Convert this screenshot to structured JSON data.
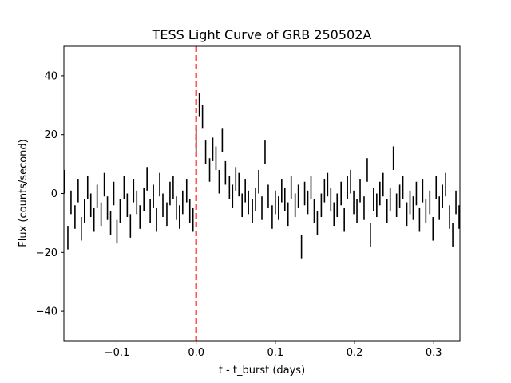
{
  "chart_data": {
    "type": "scatter",
    "title": "TESS Light Curve of GRB 250502A",
    "xlabel": "t - t_burst (days)",
    "ylabel": "Flux (counts/second)",
    "xlim": [
      -0.167,
      0.333
    ],
    "ylim": [
      -50,
      50
    ],
    "xticks": [
      -0.1,
      0.0,
      0.1,
      0.2,
      0.3
    ],
    "xtick_labels": [
      "−0.1",
      "0.0",
      "0.1",
      "0.2",
      "0.3"
    ],
    "yticks": [
      -40,
      -20,
      0,
      20,
      40
    ],
    "ytick_labels": [
      "−40",
      "−20",
      "0",
      "20",
      "40"
    ],
    "grid": false,
    "errorbar_half_height": 4,
    "marker_color": "#000000",
    "burst_line": {
      "x": 0.0,
      "color": "#ff0000",
      "style": "dashed"
    },
    "series": [
      {
        "x": [
          -0.166,
          -0.162,
          -0.158,
          -0.153,
          -0.149,
          -0.145,
          -0.141,
          -0.137,
          -0.133,
          -0.129,
          -0.125,
          -0.12,
          -0.116,
          -0.112,
          -0.108,
          -0.104,
          -0.1,
          -0.096,
          -0.091,
          -0.087,
          -0.083,
          -0.079,
          -0.075,
          -0.071,
          -0.066,
          -0.062,
          -0.058,
          -0.054,
          -0.05,
          -0.046,
          -0.042,
          -0.037,
          -0.033,
          -0.029,
          -0.025,
          -0.021,
          -0.017,
          -0.012,
          -0.008,
          -0.004,
          0.0,
          0.004,
          0.008,
          0.012,
          0.017,
          0.021,
          0.025,
          0.029,
          0.033,
          0.037,
          0.042,
          0.046,
          0.05,
          0.054,
          0.058,
          0.062,
          0.066,
          0.071,
          0.075,
          0.079,
          0.083,
          0.087,
          0.091,
          0.096,
          0.1,
          0.104,
          0.108,
          0.112,
          0.116,
          0.12,
          0.125,
          0.129,
          0.133,
          0.137,
          0.141,
          0.145,
          0.149,
          0.153,
          0.158,
          0.162,
          0.166,
          0.17,
          0.174,
          0.178,
          0.183,
          0.187,
          0.191,
          0.195,
          0.199,
          0.203,
          0.207,
          0.212,
          0.216,
          0.22,
          0.224,
          0.228,
          0.232,
          0.236,
          0.241,
          0.245,
          0.249,
          0.253,
          0.257,
          0.261,
          0.266,
          0.27,
          0.274,
          0.278,
          0.282,
          0.286,
          0.29,
          0.295,
          0.299,
          0.303,
          0.307,
          0.311,
          0.315,
          0.32,
          0.324,
          0.328,
          0.332
        ],
        "y": [
          4,
          -15,
          -3,
          -8,
          1,
          -12,
          -6,
          2,
          -4,
          -9,
          -1,
          -7,
          3,
          -5,
          -10,
          0,
          -13,
          -6,
          2,
          -4,
          -11,
          1,
          -3,
          -8,
          -2,
          5,
          -6,
          -1,
          -9,
          3,
          -4,
          -7,
          0,
          2,
          -5,
          -8,
          -3,
          1,
          -6,
          -9,
          18,
          30,
          26,
          14,
          8,
          15,
          12,
          4,
          18,
          7,
          2,
          -1,
          5,
          3,
          -4,
          1,
          -3,
          -6,
          -2,
          4,
          -5,
          14,
          -1,
          -8,
          -3,
          -5,
          1,
          -2,
          -7,
          2,
          -4,
          -1,
          -18,
          0,
          -3,
          2,
          -6,
          -10,
          -4,
          1,
          3,
          -2,
          -7,
          -4,
          0,
          -9,
          2,
          4,
          -3,
          -6,
          1,
          -5,
          8,
          -14,
          -2,
          -4,
          0,
          3,
          -6,
          -2,
          12,
          -4,
          -1,
          2,
          -7,
          -3,
          -5,
          0,
          -9,
          1,
          -6,
          -3,
          -12,
          2,
          -5,
          -1,
          3,
          -8,
          -14,
          -3,
          -8
        ]
      }
    ]
  }
}
